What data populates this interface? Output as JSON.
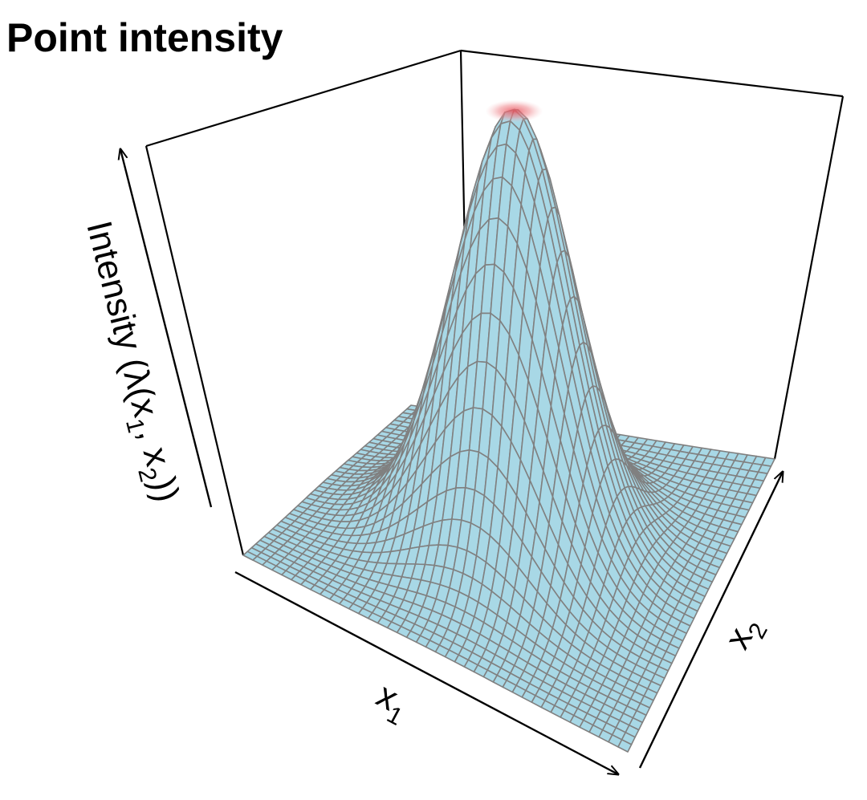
{
  "chart_data": {
    "type": "surface",
    "title": "Point intensity",
    "xlabel": "x",
    "xlabel_sub": "1",
    "ylabel": "x",
    "ylabel_sub": "2",
    "zlabel_parts": {
      "prefix": "Intensity (λ(x",
      "sub1": "1",
      "middle": ", x",
      "sub2": "2",
      "suffix": "))"
    },
    "surface": {
      "function": "bivariate-gaussian",
      "x_range": [
        0,
        1
      ],
      "y_range": [
        0,
        1
      ],
      "peak_x": 0.5,
      "peak_y": 0.5,
      "sigma": 0.15,
      "grid_size": 40,
      "z_range": [
        0,
        1
      ]
    },
    "colors": {
      "surface_fill": "#a8d8e6",
      "surface_stroke": "#808080",
      "peak_highlight": "#e8505a",
      "box": "#000000"
    }
  }
}
